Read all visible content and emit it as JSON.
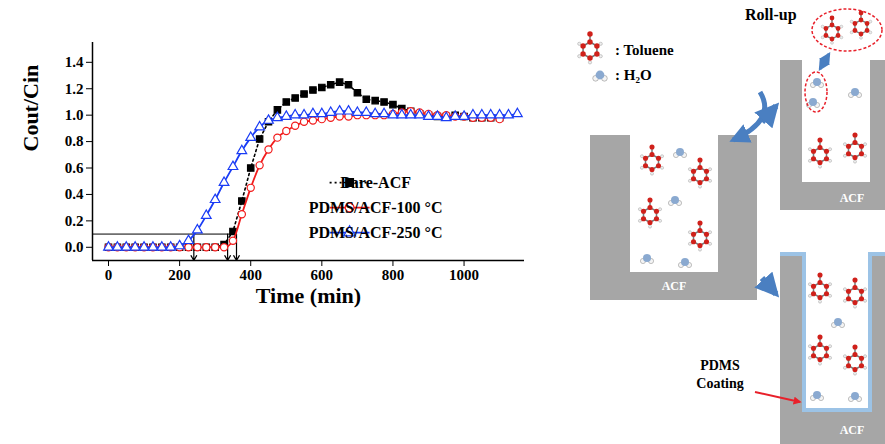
{
  "chart_data": {
    "type": "line",
    "xlabel": "Time (min)",
    "ylabel": "Cout/Cin",
    "x": [
      0,
      25,
      50,
      75,
      100,
      125,
      150,
      175,
      200,
      225,
      250,
      275,
      300,
      325,
      350,
      375,
      400,
      425,
      450,
      475,
      500,
      525,
      550,
      575,
      600,
      625,
      650,
      675,
      700,
      725,
      750,
      775,
      800,
      825,
      850,
      875,
      900,
      925,
      950,
      975,
      1000,
      1025,
      1050,
      1075,
      1100,
      1125,
      1150
    ],
    "series": [
      {
        "name": "Bare-ACF",
        "color": "#000000",
        "marker": "filled square",
        "line_style": "dotted",
        "values": [
          0,
          0,
          0,
          0,
          0,
          0,
          0,
          0,
          0,
          0,
          0,
          0,
          0,
          0.02,
          0.12,
          0.35,
          0.6,
          0.82,
          0.95,
          1.04,
          1.1,
          1.13,
          1.16,
          1.19,
          1.21,
          1.23,
          1.25,
          1.23,
          1.17,
          1.12,
          1.11,
          1.1,
          1.08,
          1.05,
          1.03,
          1.01,
          1.0,
          0.99,
          0.99,
          1.0,
          0.99,
          0.98,
          0.98,
          0.98,
          0.98,
          null,
          null
        ]
      },
      {
        "name": "PDMS/ACF-100 °C",
        "color": "#f21c1c",
        "marker": "open circle",
        "line_style": "solid",
        "values": [
          0,
          0,
          0,
          0,
          0,
          0,
          0,
          0,
          0,
          0,
          0,
          0,
          0,
          0,
          0.05,
          0.25,
          0.45,
          0.62,
          0.74,
          0.83,
          0.88,
          0.92,
          0.95,
          0.96,
          0.97,
          0.98,
          0.99,
          0.99,
          1.0,
          1.0,
          1.0,
          1.0,
          1.01,
          1.02,
          1.03,
          1.02,
          1.01,
          1.0,
          1.0,
          0.99,
          0.99,
          0.98,
          0.98,
          0.98,
          0.97,
          null,
          null
        ]
      },
      {
        "name": "PDMS/ACF-250 °C",
        "color": "#1a3cf5",
        "marker": "open triangle",
        "line_style": "solid",
        "values": [
          0,
          0,
          0,
          0,
          0,
          0,
          0,
          0,
          0.01,
          0.05,
          0.13,
          0.24,
          0.36,
          0.49,
          0.61,
          0.73,
          0.83,
          0.91,
          0.96,
          0.98,
          0.99,
          1.0,
          1.0,
          1.01,
          1.01,
          1.02,
          1.03,
          1.03,
          1.02,
          1.02,
          1.01,
          1.01,
          1.0,
          1.0,
          1.0,
          1.0,
          0.99,
          0.99,
          0.98,
          0.99,
          0.99,
          1.0,
          1.0,
          1.0,
          1.0,
          1.0,
          1.01
        ]
      }
    ],
    "xlim": [
      -45,
      1170
    ],
    "xticks": [
      0,
      200,
      400,
      600,
      800,
      1000
    ],
    "ylim": [
      -0.1,
      1.55
    ],
    "yticks": [
      {
        "value": 0,
        "label": "0.0"
      },
      0.2,
      0.4,
      0.6,
      0.8,
      {
        "value": 1,
        "label": "1.0"
      },
      1.2,
      1.4
    ],
    "breakthrough_level": 0.1,
    "breakthrough_times": [
      240,
      335,
      360
    ],
    "grid": false,
    "legend": "lower right"
  },
  "diagram": {
    "legend": [
      {
        "label": ": Toluene"
      },
      {
        "label": ": H₂O"
      }
    ],
    "panels": [
      {
        "label": "ACF"
      },
      {
        "label": "ACF",
        "annotation": "Roll-up"
      },
      {
        "label": "ACF",
        "annotation": "PDMS Coating"
      }
    ]
  }
}
